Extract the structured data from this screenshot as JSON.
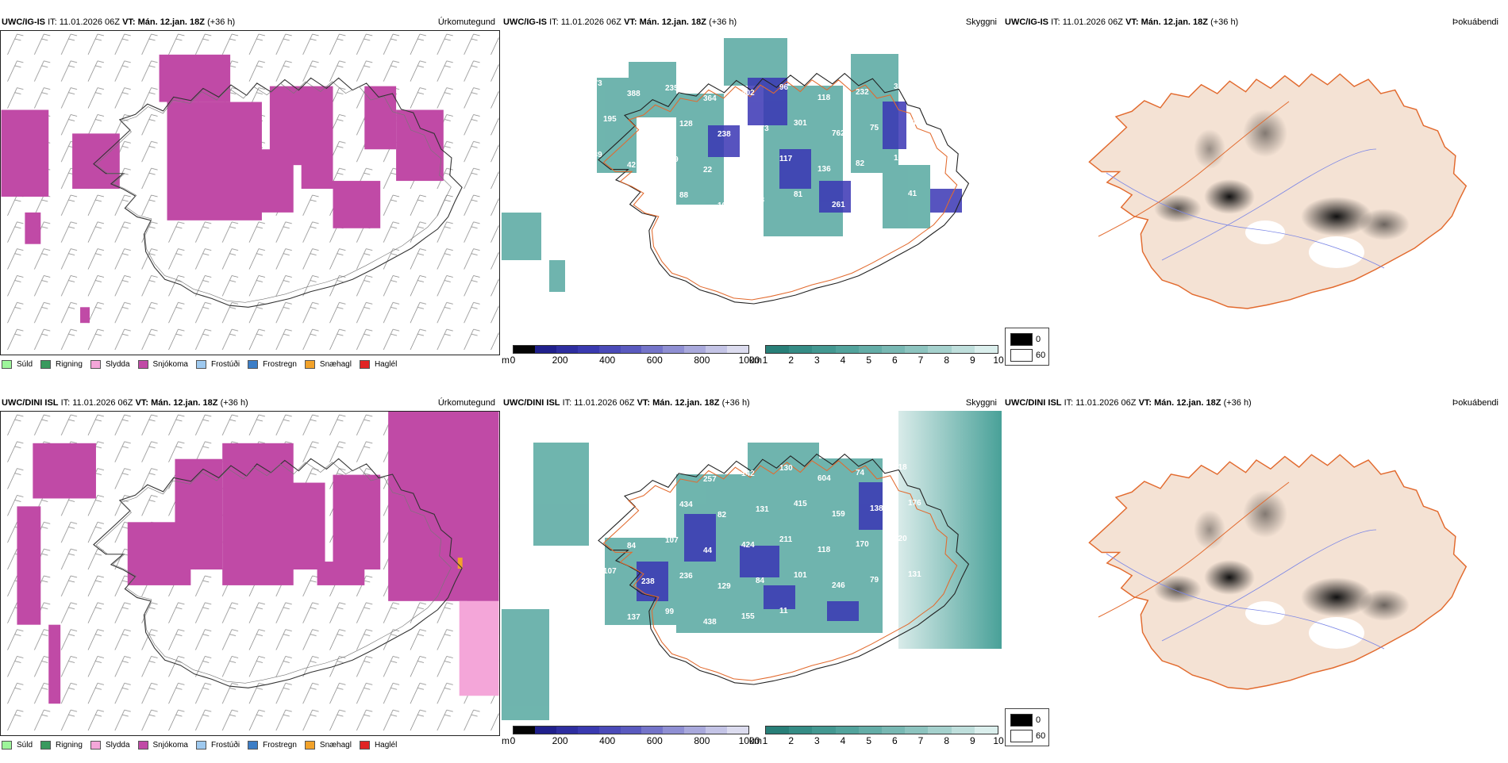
{
  "colors": {
    "precip_magenta": "#c04aa6",
    "cloud_teal": "#3f9c93",
    "cloud_blue": "#3a36b4",
    "land_beige": "#f4e2d4",
    "road_orange": "#e26a2e"
  },
  "rows": [
    {
      "model": "UWC/IG-IS",
      "it_label": "IT:",
      "it_value": "11.01.2026 06Z",
      "vt_label": "VT:",
      "vt_value": "Mán. 12.jan. 18Z",
      "lead": "(+36 h)"
    },
    {
      "model": "UWC/DINI ISL",
      "it_label": "IT:",
      "it_value": "11.01.2026 06Z",
      "vt_label": "VT:",
      "vt_value": "Mán. 12.jan. 18Z",
      "lead": "(+36 h)"
    }
  ],
  "fields": {
    "precip_type": "Úrkomutegund",
    "cloud_base": "Skyggni",
    "fog": "Þokuábendi"
  },
  "precip_legend": [
    {
      "label": "Súld",
      "color": "#9df59a"
    },
    {
      "label": "Rigning",
      "color": "#3a9a5e"
    },
    {
      "label": "Slydda",
      "color": "#f4a6d9"
    },
    {
      "label": "Snjókoma",
      "color": "#c04aa6"
    },
    {
      "label": "Frostúði",
      "color": "#9ec9ef"
    },
    {
      "label": "Frostregn",
      "color": "#3d7ec6"
    },
    {
      "label": "Snæhagl",
      "color": "#f2a22a"
    },
    {
      "label": "Haglél",
      "color": "#e02424"
    }
  ],
  "height_scale": {
    "unit": "m",
    "labels": [
      "0",
      "200",
      "400",
      "600",
      "800",
      "1000"
    ],
    "colors": [
      "#050505",
      "#20208c",
      "#2e2ea0",
      "#3a3ab0",
      "#4a4ab8",
      "#5a5abf",
      "#7474c9",
      "#8f8fd3",
      "#a9a9dc",
      "#c4c4e6",
      "#dcdcef"
    ]
  },
  "visibility_scale": {
    "unit": "km",
    "labels": [
      "1",
      "2",
      "3",
      "4",
      "5",
      "6",
      "7",
      "8",
      "9",
      "10"
    ],
    "colors": [
      "#287f78",
      "#358c85",
      "#439891",
      "#52a39c",
      "#64ada7",
      "#78b8b3",
      "#8dc4bf",
      "#a5d1cd",
      "#bfdfdc",
      "#dbefed"
    ]
  },
  "fog_scale": {
    "labels": [
      "0",
      "60"
    ]
  },
  "cloud_labels_top": [
    "573",
    "388",
    "235",
    "364",
    "402",
    "96",
    "118",
    "232",
    "320",
    "195",
    "100",
    "128",
    "238",
    "373",
    "301",
    "762",
    "75",
    "219",
    "139",
    "42",
    "579",
    "22",
    "36",
    "117",
    "136",
    "82",
    "160",
    "210",
    "161",
    "88",
    "104",
    "73",
    "81",
    "261",
    "86",
    "41",
    "39",
    "41"
  ],
  "cloud_labels_bottom": [
    "254",
    "378",
    "216",
    "257",
    "142",
    "130",
    "604",
    "74",
    "518",
    "308",
    "205",
    "434",
    "82",
    "131",
    "415",
    "159",
    "138",
    "176",
    "125",
    "84",
    "107",
    "44",
    "424",
    "211",
    "118",
    "170",
    "120",
    "107",
    "238",
    "236",
    "129",
    "84",
    "101",
    "246",
    "79",
    "131",
    "42",
    "137",
    "99",
    "438",
    "155",
    "11"
  ]
}
